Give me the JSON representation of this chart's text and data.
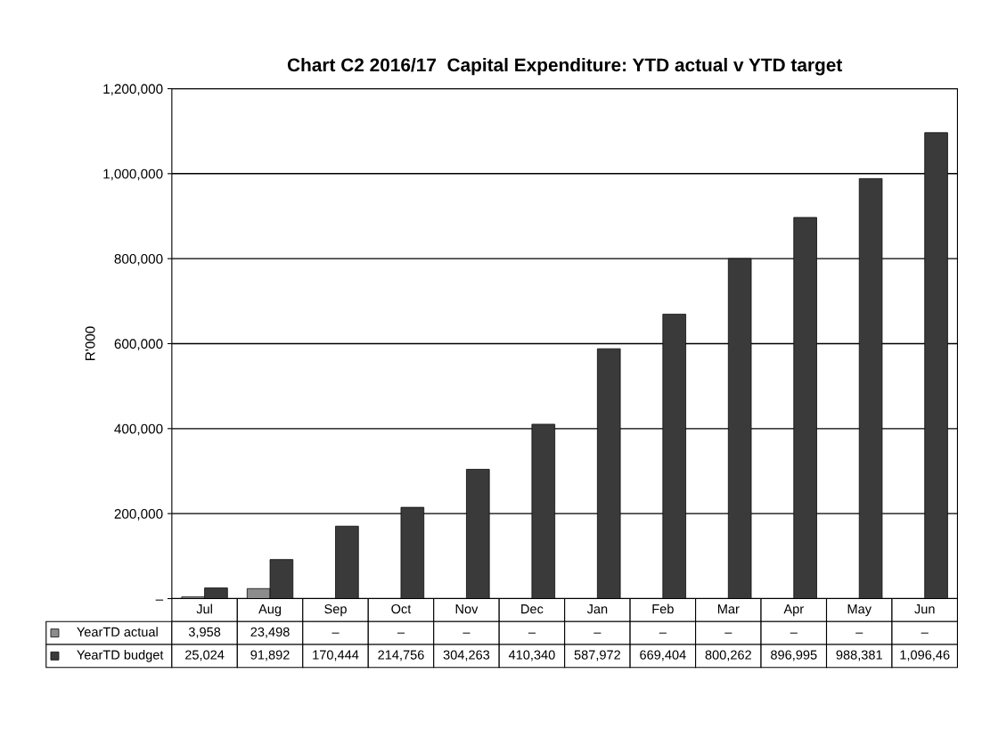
{
  "chart_data": {
    "type": "bar",
    "title": "Chart C2 2016/17  Capital Expenditure: YTD actual v YTD target",
    "ylabel": "R'000",
    "categories": [
      "Jul",
      "Aug",
      "Sep",
      "Oct",
      "Nov",
      "Dec",
      "Jan",
      "Feb",
      "Mar",
      "Apr",
      "May",
      "Jun"
    ],
    "series": [
      {
        "name": "YearTD actual",
        "color": "#8c8c8c",
        "values": [
          3958,
          23498,
          null,
          null,
          null,
          null,
          null,
          null,
          null,
          null,
          null,
          null
        ],
        "value_labels": [
          "3,958",
          "23,498",
          "–",
          "–",
          "–",
          "–",
          "–",
          "–",
          "–",
          "–",
          "–",
          "–"
        ]
      },
      {
        "name": "YearTD budget",
        "color": "#3a3a3a",
        "values": [
          25024,
          91892,
          170444,
          214756,
          304263,
          410340,
          587972,
          669404,
          800262,
          896995,
          988381,
          1096460
        ],
        "value_labels": [
          "25,024",
          "91,892",
          "170,444",
          "214,756",
          "304,263",
          "410,340",
          "587,972",
          "669,404",
          "800,262",
          "896,995",
          "988,381",
          "1,096,46"
        ]
      }
    ],
    "ylim": [
      0,
      1200000
    ],
    "yticks": [
      {
        "value": 0,
        "label": "–"
      },
      {
        "value": 200000,
        "label": "200,000"
      },
      {
        "value": 400000,
        "label": "400,000"
      },
      {
        "value": 600000,
        "label": "600,000"
      },
      {
        "value": 800000,
        "label": "800,000"
      },
      {
        "value": 1000000,
        "label": "1,000,000"
      },
      {
        "value": 1200000,
        "label": "1,200,000"
      }
    ],
    "grid": "y",
    "legend": "bottom left"
  }
}
